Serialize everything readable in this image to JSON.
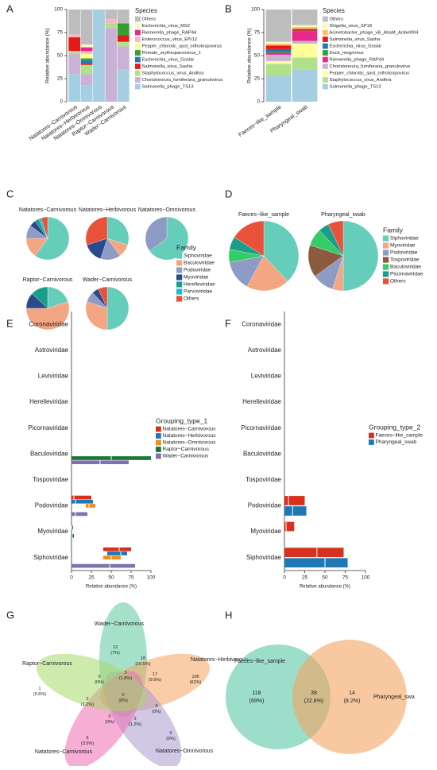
{
  "chart_data": [
    {
      "type": "bar",
      "stacked": true,
      "panel_label": "A",
      "ylabel": "Relative abundance (%)",
      "ylim": [
        0,
        100
      ],
      "yticks": [
        0,
        25,
        50,
        75,
        100
      ],
      "legend_title": "Species",
      "categories": [
        "Natatores−Carnivorous",
        "Natatores−Herbivorous",
        "Natatores−Omnivorous",
        "Raptor−Carnivorous",
        "Wader−Carnivorous"
      ],
      "series": [
        {
          "name": "Others",
          "color": "#bdbdbd",
          "values": [
            27,
            38,
            0,
            10,
            15
          ]
        },
        {
          "name": "Escherichia_virus_MS2",
          "color": "#fff7c2",
          "values": [
            0,
            3,
            0,
            0,
            0
          ]
        },
        {
          "name": "Riemerella_phage_RAP44",
          "color": "#e7298a",
          "values": [
            0,
            4,
            0,
            0,
            0
          ]
        },
        {
          "name": "Enterococcus_virus_EfV12",
          "color": "#fbb4c4",
          "values": [
            3,
            3,
            0,
            5,
            0
          ]
        },
        {
          "name": "Pepper_chlorotic_spot_orthotospovirus",
          "color": "#ffff99",
          "values": [
            0,
            5,
            0,
            0,
            0
          ]
        },
        {
          "name": "Primate_erythroparvovirus_1",
          "color": "#33a02c",
          "values": [
            0,
            2,
            0,
            0,
            13
          ]
        },
        {
          "name": "Escherichia_virus_Goslar",
          "color": "#1f78b4",
          "values": [
            0,
            3,
            0,
            0,
            0
          ]
        },
        {
          "name": "Salmonella_virus_Sasha",
          "color": "#e31a1c",
          "values": [
            15,
            2,
            0,
            0,
            7
          ]
        },
        {
          "name": "Staphylococcus_virus_Andhra",
          "color": "#b2df8a",
          "values": [
            3,
            10,
            0,
            5,
            5
          ]
        },
        {
          "name": "Choristoneura_fumiferana_granulovirus",
          "color": "#cab2d6",
          "values": [
            22,
            12,
            0,
            80,
            25
          ]
        },
        {
          "name": "Salmonella_phage_TS13",
          "color": "#a6cee3",
          "values": [
            30,
            18,
            100,
            0,
            35
          ]
        }
      ]
    },
    {
      "type": "bar",
      "stacked": true,
      "panel_label": "B",
      "ylabel": "Relative abundance (%)",
      "ylim": [
        0,
        100
      ],
      "yticks": [
        0,
        25,
        50,
        75,
        100
      ],
      "legend_title": "Species",
      "categories": [
        "Faeces−like_sample",
        "Pharyngeal_swab"
      ],
      "series": [
        {
          "name": "Others",
          "color": "#bdbdbd",
          "values": [
            35,
            17
          ]
        },
        {
          "name": "Shigella_virus_SP18",
          "color": "#fff7c2",
          "values": [
            2,
            2
          ]
        },
        {
          "name": "Acinetobacter_phage_vB_AbaM_Acibel004",
          "color": "#fdbf6f",
          "values": [
            2,
            2
          ]
        },
        {
          "name": "Salmonella_virus_Sasha",
          "color": "#e31a1c",
          "values": [
            4,
            2
          ]
        },
        {
          "name": "Escherichia_virus_Goslar",
          "color": "#1f78b4",
          "values": [
            3,
            1
          ]
        },
        {
          "name": "Duck_megrivirus",
          "color": "#33a02c",
          "values": [
            1,
            0
          ]
        },
        {
          "name": "Riemerella_phage_RAP44",
          "color": "#e7298a",
          "values": [
            2,
            10
          ]
        },
        {
          "name": "Choristoneura_fumiferana_granulovirus",
          "color": "#cab2d6",
          "values": [
            7,
            3
          ]
        },
        {
          "name": "Pepper_chlorotic_spot_orthotospovirus",
          "color": "#ffff99",
          "values": [
            3,
            15
          ]
        },
        {
          "name": "Staphylococcus_virus_Andhra",
          "color": "#b2df8a",
          "values": [
            13,
            13
          ]
        },
        {
          "name": "Salmonella_phage_TS13",
          "color": "#a6cee3",
          "values": [
            28,
            35
          ]
        }
      ]
    },
    {
      "type": "pie",
      "panel_label": "C",
      "legend_title": "Family",
      "categories": [
        "Siphoviridae",
        "Baculoviridae",
        "Podoviridae",
        "Myoviridae",
        "Herelleviridae",
        "Parvoviridae",
        "Others"
      ],
      "colors": [
        "#66cdbb",
        "#f4a582",
        "#8e9bc4",
        "#2b4a8c",
        "#1a9e8a",
        "#1ab9d6",
        "#e8513a"
      ],
      "pies": [
        {
          "title": "Natatores−Carnivorous",
          "values": [
            60,
            15,
            10,
            5,
            3,
            2,
            5
          ]
        },
        {
          "title": "Natatores−Herbivorous",
          "values": [
            30,
            10,
            15,
            15,
            0,
            0,
            30
          ]
        },
        {
          "title": "Natatores−Omnivorous",
          "values": [
            65,
            0,
            35,
            0,
            0,
            0,
            0
          ]
        },
        {
          "title": "Raptor−Carnivorous",
          "values": [
            20,
            55,
            0,
            12,
            13,
            0,
            0
          ]
        },
        {
          "title": "Wader−Carnivorous",
          "values": [
            50,
            30,
            8,
            5,
            0,
            0,
            7
          ]
        }
      ]
    },
    {
      "type": "pie",
      "panel_label": "D",
      "legend_title": "Family",
      "categories": [
        "Siphoviridae",
        "Myoviridae",
        "Podoviridae",
        "Tospoviridae",
        "Baculoviridae",
        "Picornaviridae",
        "Others"
      ],
      "colors": [
        "#66cdbb",
        "#f4a582",
        "#8e9bc4",
        "#8c5a3c",
        "#33cc66",
        "#1a9e8a",
        "#e8513a"
      ],
      "pies": [
        {
          "title": "Faeces−like_sample",
          "values": [
            38,
            20,
            14,
            0,
            6,
            6,
            16
          ]
        },
        {
          "title": "Pharyngeal_swab",
          "values": [
            50,
            5,
            10,
            15,
            8,
            5,
            7
          ]
        }
      ]
    },
    {
      "type": "box",
      "panel_label": "E",
      "xlabel": "Relative abundance (%)",
      "xlim": [
        0,
        100
      ],
      "xticks": [
        0,
        25,
        50,
        75,
        100
      ],
      "legend_title": "Grouping_type_1",
      "categories": [
        "Coronaviridae",
        "Astroviridae",
        "Leviviridae",
        "Herelleviridae",
        "Picornaviridae",
        "Baculoviridae",
        "Tospoviridae",
        "Podoviridae",
        "Myoviridae",
        "Siphoviridae"
      ],
      "series": [
        {
          "name": "Natatores−Carnivorous",
          "color": "#d7301f",
          "boxes": [
            null,
            null,
            null,
            null,
            null,
            null,
            null,
            [
              0,
              3,
              25
            ],
            null,
            [
              40,
              60,
              75
            ]
          ]
        },
        {
          "name": "Natatores−Herbivorous",
          "color": "#1f78b4",
          "boxes": [
            null,
            null,
            null,
            null,
            null,
            null,
            null,
            [
              0,
              5,
              27
            ],
            [
              0,
              0,
              2
            ],
            [
              45,
              62,
              70
            ]
          ]
        },
        {
          "name": "Natatores−Omnivorous",
          "color": "#f28e1c",
          "boxes": [
            null,
            null,
            null,
            null,
            null,
            null,
            null,
            [
              18,
              22,
              30
            ],
            null,
            [
              40,
              50,
              62
            ]
          ]
        },
        {
          "name": "Raptor−Carnivorous",
          "color": "#1b7837",
          "boxes": [
            null,
            null,
            null,
            null,
            null,
            [
              0,
              50,
              100
            ],
            null,
            null,
            [
              0,
              1,
              3
            ],
            null
          ]
        },
        {
          "name": "Wader−Carnivorous",
          "color": "#8073ac",
          "boxes": [
            null,
            null,
            null,
            null,
            null,
            [
              0,
              36,
              72
            ],
            null,
            [
              0,
              5,
              20
            ],
            null,
            [
              0,
              48,
              80
            ]
          ]
        }
      ]
    },
    {
      "type": "box",
      "panel_label": "F",
      "xlabel": "Relative abundance (%)",
      "xlim": [
        0,
        100
      ],
      "xticks": [
        0,
        25,
        50,
        75,
        100
      ],
      "legend_title": "Grouping_type_2",
      "categories": [
        "Coronaviridae",
        "Astroviridae",
        "Leviviridae",
        "Herelleviridae",
        "Picornaviridae",
        "Baculoviridae",
        "Tospoviridae",
        "Podoviridae",
        "Myoviridae",
        "Siphoviridae"
      ],
      "series": [
        {
          "name": "Faeces−like_sample",
          "color": "#d7301f",
          "boxes": [
            null,
            null,
            null,
            null,
            null,
            null,
            null,
            [
              0,
              5,
              25
            ],
            [
              0,
              2,
              12
            ],
            [
              0,
              40,
              73
            ]
          ]
        },
        {
          "name": "Pharyngeal_swab",
          "color": "#1f78b4",
          "boxes": [
            null,
            null,
            null,
            null,
            null,
            null,
            null,
            [
              0,
              10,
              27
            ],
            null,
            [
              0,
              50,
              78
            ]
          ]
        }
      ]
    },
    {
      "type": "venn",
      "panel_label": "G",
      "sets": [
        {
          "name": "Wader−Carnivorous",
          "color": "#5cc8a0"
        },
        {
          "name": "Natatores−Herbivorous",
          "color": "#f4a460"
        },
        {
          "name": "Natatores−Omnivorous",
          "color": "#a99bd0"
        },
        {
          "name": "Natatores−Carnivorous",
          "color": "#f06bb0"
        },
        {
          "name": "Raptor−Carnivorous",
          "color": "#a6d96a"
        }
      ],
      "regions": [
        {
          "count": 12,
          "percent_label": "(7%)"
        },
        {
          "count": 106,
          "percent_label": "(62%)"
        },
        {
          "count": 0,
          "percent_label": "(0%)"
        },
        {
          "count": 6,
          "percent_label": "(3.5%)"
        },
        {
          "count": 1,
          "percent_label": "(0.6%)"
        },
        {
          "count": 18,
          "percent_label": "(10.5%)"
        },
        {
          "count": 17,
          "percent_label": "(9.9%)"
        },
        {
          "count": 3,
          "percent_label": "(1.8%)"
        },
        {
          "count": 2,
          "percent_label": "(1.2%)"
        },
        {
          "count": 2,
          "percent_label": "(1.2%)"
        },
        {
          "count": 0,
          "percent_label": "(0%)"
        },
        {
          "count": 0,
          "percent_label": "(0%)"
        },
        {
          "count": 0,
          "percent_label": "(0%)"
        },
        {
          "count": 0,
          "percent_label": "(0%)"
        }
      ]
    },
    {
      "type": "venn",
      "panel_label": "H",
      "sets": [
        {
          "name": "Faeces−like_sample",
          "color": "#5cc8a8"
        },
        {
          "name": "Pharyngeal_swa",
          "color": "#f4a460"
        }
      ],
      "regions": [
        {
          "count": 118,
          "percent_label": "(69%)"
        },
        {
          "count": 39,
          "percent_label": "(22.8%)"
        },
        {
          "count": 14,
          "percent_label": "(8.2%)"
        }
      ]
    }
  ]
}
